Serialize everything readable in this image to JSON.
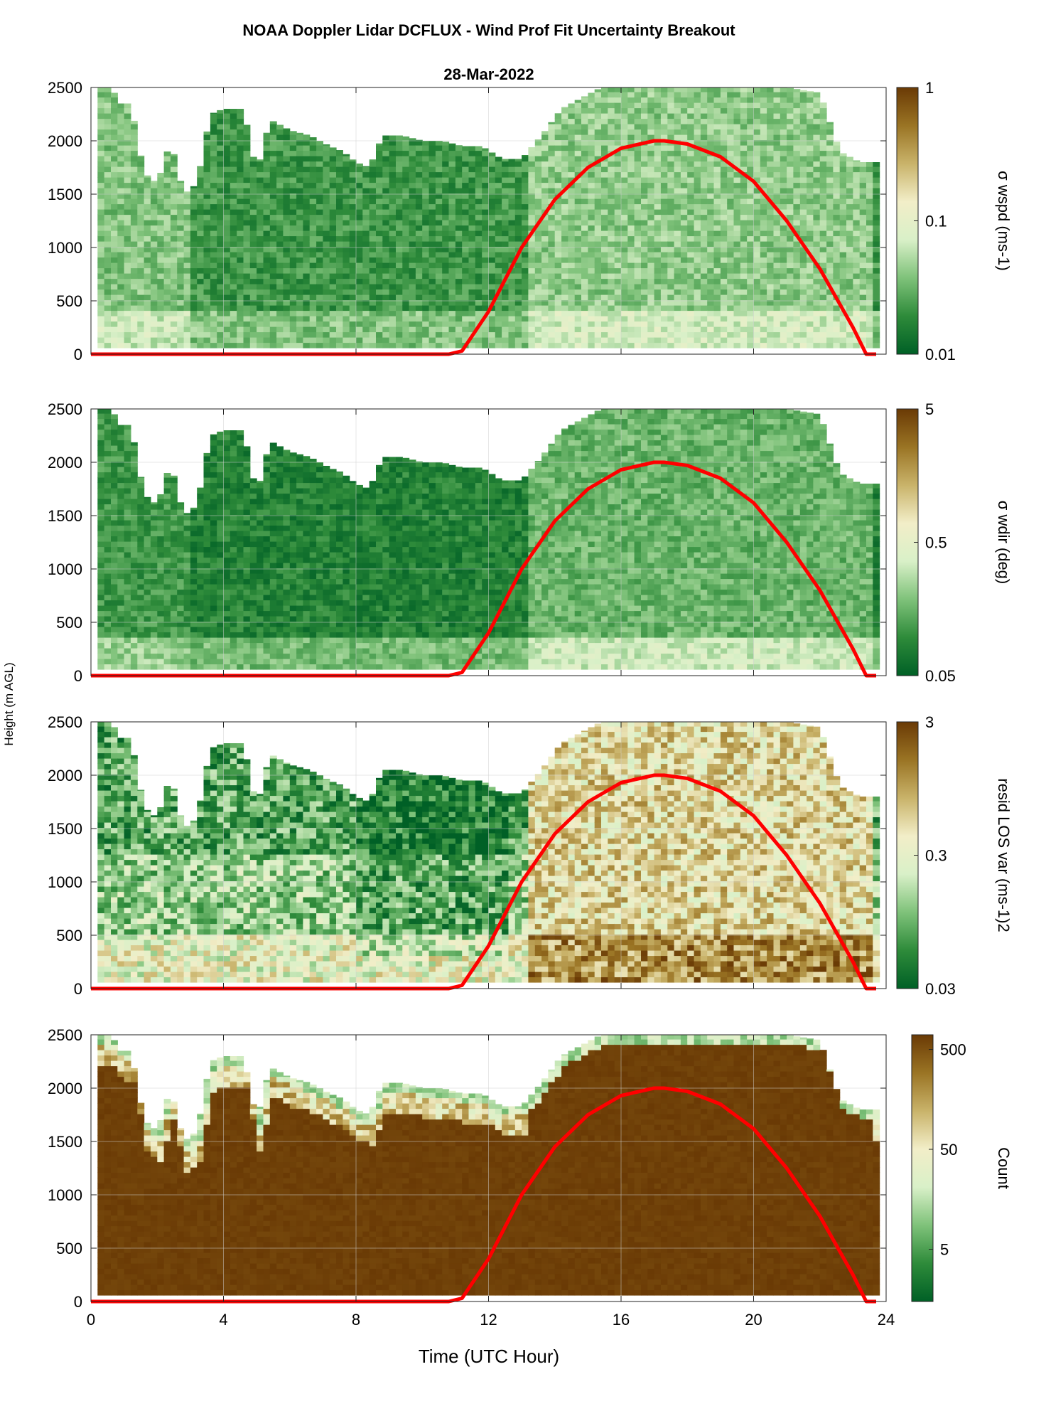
{
  "figure": {
    "title": "NOAA Doppler Lidar DCFLUX - Wind Prof Fit Uncertainty Breakout",
    "subtitle": "28-Mar-2022",
    "shared_ylabel": "Height (m AGL)",
    "xlabel": "Time (UTC Hour)"
  },
  "colors": {
    "sun_curve": "#ff0000",
    "colormap": [
      "#006026",
      "#2e8b3a",
      "#7fc27a",
      "#d9f0c8",
      "#f2eec8",
      "#c9b36a",
      "#9a7424",
      "#6a3a05"
    ],
    "background": "#ffffff"
  },
  "chart_data": [
    {
      "type": "heatmap",
      "xlabel": "",
      "ylabel": "",
      "colorbar_label": "σ wspd (ms-1)",
      "colorbar_scale": "log",
      "colorbar_ticks": [
        "0.01",
        "0.1",
        "1"
      ],
      "clim": [
        0.01,
        1
      ],
      "x_ticks": [
        0,
        4,
        8,
        12,
        16,
        20,
        24
      ],
      "y_ticks": [
        "0",
        "500",
        "1000",
        "1500",
        "2000",
        "2500"
      ],
      "xlim": [
        0,
        24
      ],
      "ylim": [
        0,
        2500
      ],
      "grid": true,
      "field_character": "mostly dark green (low uncertainty), lighter green near 0-3 UTC and after 13 UTC",
      "series": [
        {
          "values": [
            [
              0,
              0
            ],
            [
              2,
              0
            ],
            [
              4,
              0
            ],
            [
              6,
              0
            ],
            [
              8,
              0
            ],
            [
              10,
              0
            ],
            [
              10.8,
              0
            ],
            [
              11.2,
              30
            ],
            [
              12,
              400
            ],
            [
              13,
              1000
            ],
            [
              14,
              1450
            ],
            [
              15,
              1750
            ],
            [
              16,
              1930
            ],
            [
              17,
              2000
            ],
            [
              17.3,
              2000
            ],
            [
              18,
              1970
            ],
            [
              19,
              1850
            ],
            [
              20,
              1620
            ],
            [
              21,
              1250
            ],
            [
              22,
              800
            ],
            [
              23,
              250
            ],
            [
              23.4,
              0
            ],
            [
              23.7,
              0
            ]
          ]
        }
      ]
    },
    {
      "type": "heatmap",
      "xlabel": "",
      "ylabel": "",
      "colorbar_label": "σ wdir (deg)",
      "colorbar_scale": "log",
      "colorbar_ticks": [
        "0.05",
        "0.5",
        "5"
      ],
      "clim": [
        0.05,
        5
      ],
      "x_ticks": [
        0,
        4,
        8,
        12,
        16,
        20,
        24
      ],
      "y_ticks": [
        "0",
        "500",
        "1000",
        "1500",
        "2000",
        "2500"
      ],
      "xlim": [
        0,
        24
      ],
      "ylim": [
        0,
        2500
      ],
      "grid": true,
      "field_character": "mostly dark green, lighter green below 300 m and after 13 UTC",
      "series": [
        {
          "values": [
            [
              0,
              0
            ],
            [
              2,
              0
            ],
            [
              4,
              0
            ],
            [
              6,
              0
            ],
            [
              8,
              0
            ],
            [
              10,
              0
            ],
            [
              10.8,
              0
            ],
            [
              11.2,
              30
            ],
            [
              12,
              400
            ],
            [
              13,
              1000
            ],
            [
              14,
              1450
            ],
            [
              15,
              1750
            ],
            [
              16,
              1930
            ],
            [
              17,
              2000
            ],
            [
              17.3,
              2000
            ],
            [
              18,
              1970
            ],
            [
              19,
              1850
            ],
            [
              20,
              1620
            ],
            [
              21,
              1250
            ],
            [
              22,
              800
            ],
            [
              23,
              250
            ],
            [
              23.4,
              0
            ],
            [
              23.7,
              0
            ]
          ]
        }
      ]
    },
    {
      "type": "heatmap",
      "xlabel": "",
      "ylabel": "",
      "colorbar_label": "resid LOS var (ms-1)2",
      "colorbar_scale": "log",
      "colorbar_ticks": [
        "0.03",
        "0.3",
        "3"
      ],
      "clim": [
        0.03,
        3
      ],
      "x_ticks": [
        0,
        4,
        8,
        12,
        16,
        20,
        24
      ],
      "y_ticks": [
        "0",
        "500",
        "1000",
        "1500",
        "2000",
        "2500"
      ],
      "xlim": [
        0,
        24
      ],
      "ylim": [
        0,
        2500
      ],
      "grid": true,
      "field_character": "mixed green and tan before 13 UTC, mostly brown/tan after 13 UTC and near surface",
      "series": [
        {
          "values": [
            [
              0,
              0
            ],
            [
              2,
              0
            ],
            [
              4,
              0
            ],
            [
              6,
              0
            ],
            [
              8,
              0
            ],
            [
              10,
              0
            ],
            [
              10.8,
              0
            ],
            [
              11.2,
              30
            ],
            [
              12,
              400
            ],
            [
              13,
              1000
            ],
            [
              14,
              1450
            ],
            [
              15,
              1750
            ],
            [
              16,
              1930
            ],
            [
              17,
              2000
            ],
            [
              17.3,
              2000
            ],
            [
              18,
              1970
            ],
            [
              19,
              1850
            ],
            [
              20,
              1620
            ],
            [
              21,
              1250
            ],
            [
              22,
              800
            ],
            [
              23,
              250
            ],
            [
              23.4,
              0
            ],
            [
              23.7,
              0
            ]
          ]
        }
      ]
    },
    {
      "type": "heatmap",
      "xlabel": "Time (UTC Hour)",
      "ylabel": "",
      "colorbar_label": "Count",
      "colorbar_scale": "log",
      "colorbar_ticks": [
        "5",
        "50",
        "500"
      ],
      "clim": [
        1.5,
        700
      ],
      "x_ticks": [
        0,
        4,
        8,
        12,
        16,
        20,
        24
      ],
      "y_ticks": [
        "0",
        "500",
        "1000",
        "1500",
        "2000",
        "2500"
      ],
      "xlim": [
        0,
        24
      ],
      "ylim": [
        0,
        2500
      ],
      "grid": true,
      "field_character": "mostly dark brown (high counts), lighter greens near the top of the data",
      "series": [
        {
          "values": [
            [
              0,
              0
            ],
            [
              2,
              0
            ],
            [
              4,
              0
            ],
            [
              6,
              0
            ],
            [
              8,
              0
            ],
            [
              10,
              0
            ],
            [
              10.8,
              0
            ],
            [
              11.2,
              30
            ],
            [
              12,
              400
            ],
            [
              13,
              1000
            ],
            [
              14,
              1450
            ],
            [
              15,
              1750
            ],
            [
              16,
              1930
            ],
            [
              17,
              2000
            ],
            [
              17.3,
              2000
            ],
            [
              18,
              1970
            ],
            [
              19,
              1850
            ],
            [
              20,
              1620
            ],
            [
              21,
              1250
            ],
            [
              22,
              800
            ],
            [
              23,
              250
            ],
            [
              23.4,
              0
            ],
            [
              23.7,
              0
            ]
          ]
        }
      ]
    }
  ]
}
